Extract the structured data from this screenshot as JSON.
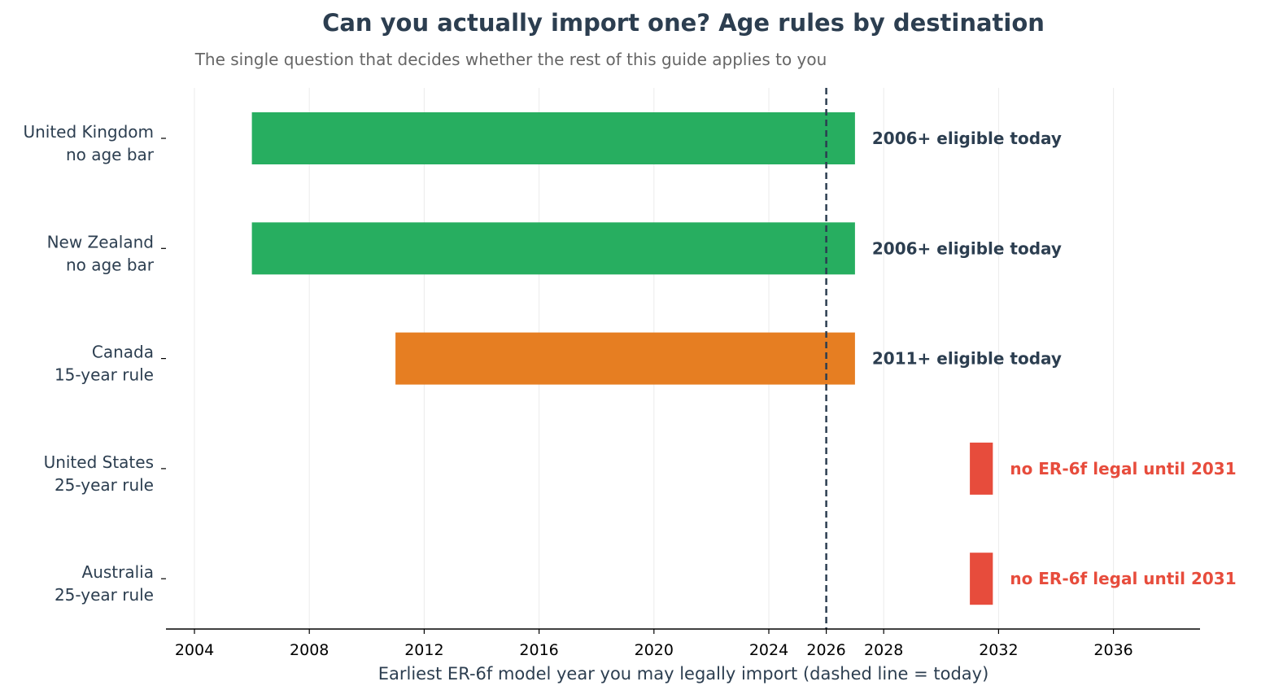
{
  "chart_data": {
    "type": "bar",
    "orientation": "horizontal",
    "title": "Can you actually import one? Age rules by destination",
    "subtitle": "The single question that decides whether the rest of this guide applies to you",
    "xlabel": "Earliest ER-6f model year you may legally import  (dashed line = today)",
    "xlim": [
      2003,
      2039
    ],
    "xticks": [
      2004,
      2008,
      2012,
      2016,
      2020,
      2024,
      2026,
      2028,
      2032,
      2036
    ],
    "grid": "vertical",
    "today": 2026,
    "rows": [
      {
        "country": "United Kingdom",
        "rule": "no age bar",
        "start": 2006,
        "end": 2027,
        "color": "#27ae60",
        "annotation": "2006+ eligible today",
        "annotation_color": "#2c3e50"
      },
      {
        "country": "New Zealand",
        "rule": "no age bar",
        "start": 2006,
        "end": 2027,
        "color": "#27ae60",
        "annotation": "2006+ eligible today",
        "annotation_color": "#2c3e50"
      },
      {
        "country": "Canada",
        "rule": "15-year rule",
        "start": 2011,
        "end": 2027,
        "color": "#e67e22",
        "annotation": "2011+ eligible today",
        "annotation_color": "#2c3e50"
      },
      {
        "country": "United States",
        "rule": "25-year rule",
        "start": 2031,
        "end": 2031.8,
        "color": "#e74c3c",
        "annotation": "no ER-6f legal until 2031",
        "annotation_color": "#e74c3c"
      },
      {
        "country": "Australia",
        "rule": "25-year rule",
        "start": 2031,
        "end": 2031.8,
        "color": "#e74c3c",
        "annotation": "no ER-6f legal until 2031",
        "annotation_color": "#e74c3c"
      }
    ]
  }
}
